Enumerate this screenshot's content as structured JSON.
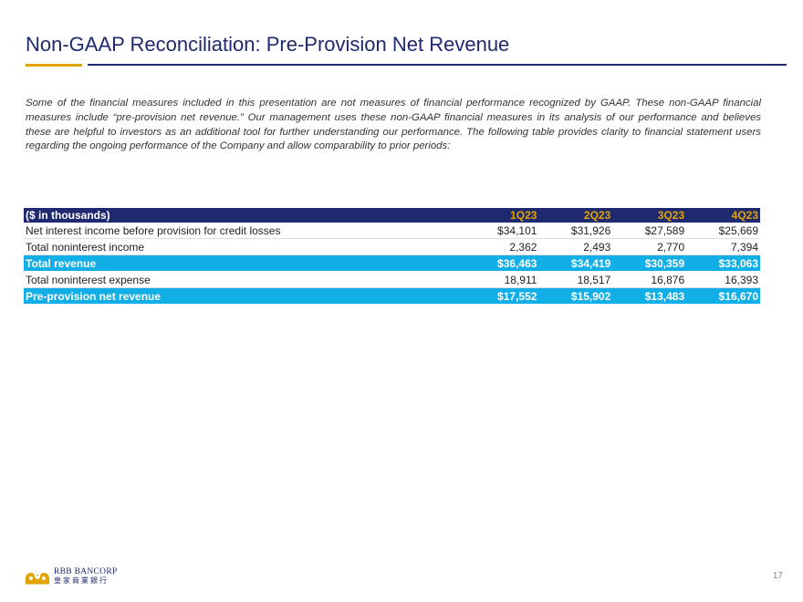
{
  "header": {
    "title": "Non-GAAP Reconciliation: Pre-Provision Net Revenue"
  },
  "intro": "Some of the financial measures included in this presentation are not measures of financial performance recognized by GAAP. These non-GAAP financial measures include “pre-provision net revenue.” Our management uses these non-GAAP financial measures in its analysis of our performance and believes these are helpful to investors as an additional tool for further understanding our performance. The following table provides clarity to financial statement users regarding the ongoing performance of the Company and allow comparability to prior periods:",
  "table": {
    "columns": [
      "($ in thousands)",
      "1Q23",
      "2Q23",
      "3Q23",
      "4Q23"
    ],
    "rows": [
      {
        "label": "Net interest income before provision for credit losses",
        "values": [
          "$34,101",
          "$31,926",
          "$27,589",
          "$25,669"
        ],
        "highlight": false
      },
      {
        "label": "Total noninterest income",
        "values": [
          "2,362",
          "2,493",
          "2,770",
          "7,394"
        ],
        "highlight": false
      },
      {
        "label": "Total revenue",
        "values": [
          "$36,463",
          "$34,419",
          "$30,359",
          "$33,063"
        ],
        "highlight": true
      },
      {
        "label": "Total noninterest expense",
        "values": [
          "18,911",
          "18,517",
          "16,876",
          "16,393"
        ],
        "highlight": false
      },
      {
        "label": "Pre-provision net revenue",
        "values": [
          "$17,552",
          "$15,902",
          "$13,483",
          "$16,670"
        ],
        "highlight": true
      }
    ]
  },
  "footer": {
    "logo_name": "RBB BANCORP",
    "logo_chinese": "皇家商業銀行",
    "logo_icon": "crown-logo-icon",
    "page_number": "17"
  },
  "colors": {
    "navy": "#1f2a6e",
    "gold": "#e2a400",
    "highlight_blue": "#12aee6"
  }
}
